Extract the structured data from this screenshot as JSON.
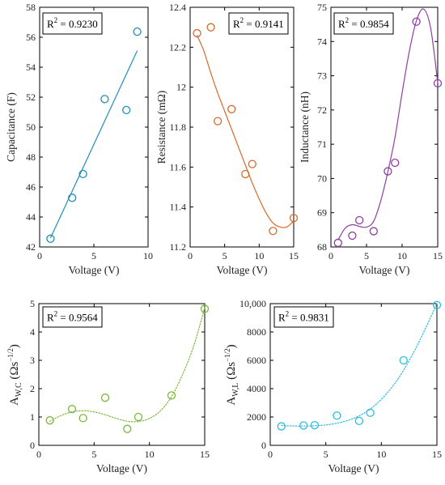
{
  "chart_data": [
    {
      "type": "scatter",
      "r2": "R",
      "r2_sup": "2",
      "r2_value": " = 0.9230",
      "xlabel": "Voltage (V)",
      "ylabel": "Capacitance (F)",
      "xlim": [
        0,
        10
      ],
      "ylim": [
        42,
        58
      ],
      "xticks": [
        0,
        5,
        10
      ],
      "yticks": [
        42,
        44,
        46,
        48,
        50,
        52,
        54,
        56,
        58
      ],
      "color": "#1f8fb8",
      "fit": "linear",
      "fit_line_style": "solid",
      "legend": "top-left",
      "x": [
        1,
        3,
        4,
        6,
        8,
        9
      ],
      "y": [
        42.55,
        45.28,
        46.87,
        51.87,
        51.14,
        56.37
      ],
      "fit_curve": {
        "x": [
          1,
          9
        ],
        "y": [
          42.6,
          55.1
        ]
      }
    },
    {
      "type": "scatter",
      "r2": "R",
      "r2_sup": "2",
      "r2_value": " = 0.9141",
      "xlabel": "Voltage (V)",
      "ylabel": "Resistance (mΩ)",
      "xlim": [
        0,
        15
      ],
      "ylim": [
        11.2,
        12.4
      ],
      "xticks": [
        0,
        5,
        10,
        15
      ],
      "yticks": [
        11.2,
        11.4,
        11.6,
        11.8,
        12,
        12.2,
        12.4
      ],
      "ytick_labels": [
        "11.2",
        "11.4",
        "11.6",
        "11.8",
        "12",
        "12.2",
        "12.4"
      ],
      "color": "#d9692b",
      "fit": "polynomial",
      "fit_line_style": "solid",
      "legend": "top-right",
      "x": [
        1,
        3,
        4,
        6,
        8,
        9,
        12,
        15
      ],
      "y": [
        12.27,
        12.3,
        11.83,
        11.89,
        11.565,
        11.615,
        11.28,
        11.345
      ],
      "fit_curve": {
        "x": [
          1,
          2,
          3,
          4,
          5,
          6,
          7,
          8,
          9,
          10,
          11,
          12,
          13,
          14,
          15
        ],
        "y": [
          12.26,
          12.18,
          12.07,
          11.97,
          11.88,
          11.79,
          11.7,
          11.61,
          11.52,
          11.44,
          11.37,
          11.32,
          11.3,
          11.3,
          11.33
        ]
      }
    },
    {
      "type": "scatter",
      "r2": "R",
      "r2_sup": "2",
      "r2_value": " = 0.9854",
      "xlabel": "Voltage (V)",
      "ylabel": "Inductance (nH)",
      "xlim": [
        0,
        15
      ],
      "ylim": [
        68,
        75
      ],
      "xticks": [
        0,
        5,
        10,
        15
      ],
      "yticks": [
        68,
        69,
        70,
        71,
        72,
        73,
        74,
        75
      ],
      "color": "#8e3fa0",
      "fit": "polynomial",
      "fit_line_style": "solid",
      "legend": "top-left",
      "x": [
        1,
        3,
        4,
        6,
        8,
        9,
        12,
        15
      ],
      "y": [
        68.12,
        68.33,
        68.78,
        68.46,
        70.21,
        70.46,
        74.58,
        72.78
      ],
      "fit_curve": {
        "x": [
          1,
          2,
          3,
          4,
          5,
          6,
          7,
          8,
          9,
          10,
          11,
          12,
          13,
          14,
          15
        ],
        "y": [
          68.2,
          68.55,
          68.65,
          68.6,
          68.58,
          68.75,
          69.35,
          70.2,
          71.2,
          72.5,
          73.7,
          74.6,
          74.95,
          74.4,
          72.8
        ]
      }
    },
    {
      "type": "scatter",
      "r2": "R",
      "r2_sup": "2",
      "r2_value": " = 0.9564",
      "xlabel": "Voltage (V)",
      "ylabel_main": "A",
      "ylabel_sub": "W,C",
      "ylabel_unit_open": " (Ωs",
      "ylabel_unit_sup": "−1/2",
      "ylabel_unit_close": ")",
      "xlim": [
        0,
        15
      ],
      "ylim": [
        0,
        5
      ],
      "xticks": [
        0,
        5,
        10,
        15
      ],
      "yticks": [
        0,
        1,
        2,
        3,
        4,
        5
      ],
      "color": "#7bb83a",
      "fit": "polynomial",
      "fit_line_style": "dotted",
      "legend": "top-left",
      "x": [
        1,
        3,
        4,
        6,
        8,
        9,
        12,
        15
      ],
      "y": [
        0.88,
        1.28,
        0.96,
        1.68,
        0.58,
        1.0,
        1.76,
        4.82
      ],
      "fit_curve": {
        "x": [
          1,
          2,
          3,
          4,
          5,
          6,
          7,
          8,
          9,
          10,
          11,
          12,
          13,
          14,
          15
        ],
        "y": [
          0.85,
          1.05,
          1.18,
          1.22,
          1.18,
          1.08,
          0.95,
          0.85,
          0.84,
          0.95,
          1.22,
          1.72,
          2.5,
          3.5,
          4.85
        ]
      }
    },
    {
      "type": "scatter",
      "r2": "R",
      "r2_sup": "2",
      "r2_value": " = 0.9831",
      "xlabel": "Voltage (V)",
      "ylabel_main": "A",
      "ylabel_sub": "W,L",
      "ylabel_unit_open": " (Ωs",
      "ylabel_unit_sup": "−1/2",
      "ylabel_unit_close": ")",
      "xlim": [
        0,
        15
      ],
      "ylim": [
        0,
        10000
      ],
      "xticks": [
        0,
        5,
        10,
        15
      ],
      "yticks": [
        0,
        2000,
        4000,
        6000,
        8000,
        10000
      ],
      "ytick_labels": [
        "0",
        "2000",
        "4000",
        "6000",
        "8000",
        "10,000"
      ],
      "color": "#2bbcdf",
      "fit": "polynomial",
      "fit_line_style": "dotted",
      "legend": "top-left",
      "x": [
        1,
        3,
        4,
        6,
        8,
        9,
        12,
        15
      ],
      "y": [
        1340,
        1400,
        1420,
        2100,
        1720,
        2300,
        6000,
        9900
      ],
      "fit_curve": {
        "x": [
          1,
          2,
          3,
          4,
          5,
          6,
          7,
          8,
          9,
          10,
          11,
          12,
          13,
          14,
          15
        ],
        "y": [
          1400,
          1370,
          1360,
          1380,
          1440,
          1560,
          1760,
          2080,
          2560,
          3250,
          4150,
          5300,
          6700,
          8300,
          10000
        ]
      }
    }
  ]
}
